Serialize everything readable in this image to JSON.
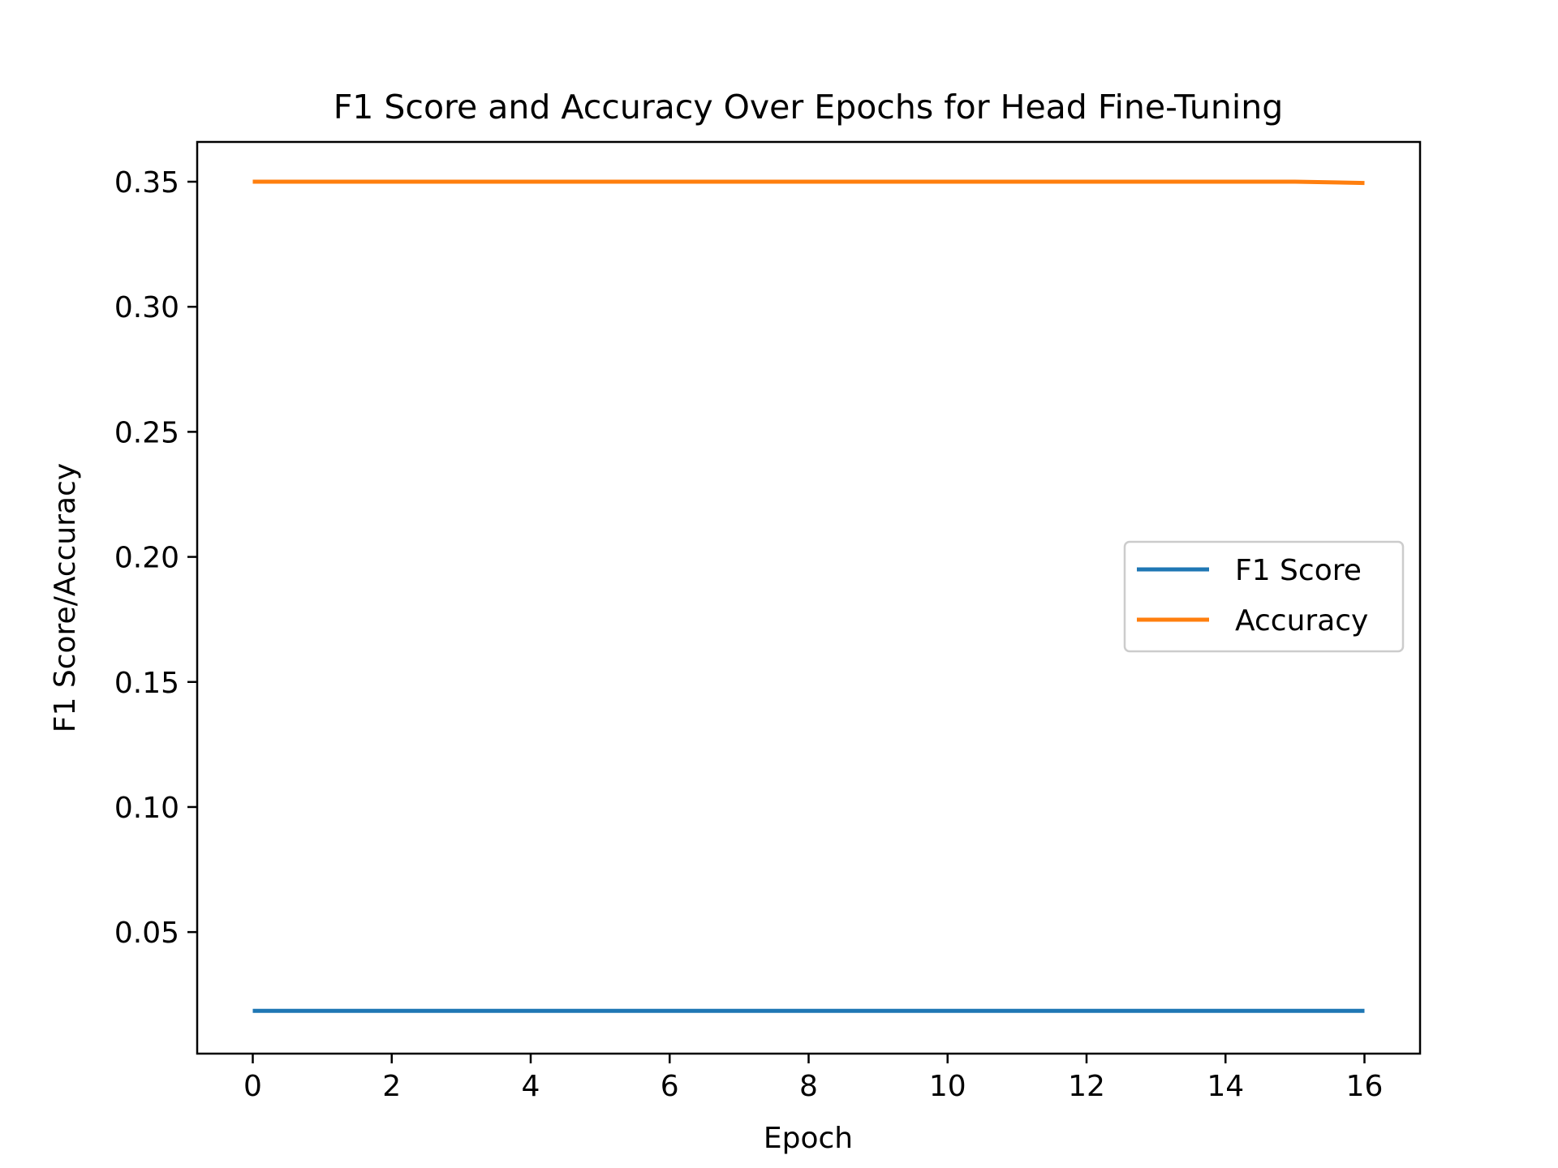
{
  "chart_data": {
    "type": "line",
    "title": "F1 Score and Accuracy Over Epochs for Head Fine-Tuning",
    "xlabel": "Epoch",
    "ylabel": "F1 Score/Accuracy",
    "x": [
      0,
      1,
      2,
      3,
      4,
      5,
      6,
      7,
      8,
      9,
      10,
      11,
      12,
      13,
      14,
      15,
      16
    ],
    "xlim": [
      -0.8,
      16.8
    ],
    "ylim": [
      0.0014,
      0.3659
    ],
    "x_ticks": [
      0,
      2,
      4,
      6,
      8,
      10,
      12,
      14,
      16
    ],
    "y_ticks": [
      0.05,
      0.1,
      0.15,
      0.2,
      0.25,
      0.3,
      0.35
    ],
    "y_tick_labels": [
      "0.05",
      "0.10",
      "0.15",
      "0.20",
      "0.25",
      "0.30",
      "0.35"
    ],
    "x_tick_labels": [
      "0",
      "2",
      "4",
      "6",
      "8",
      "10",
      "12",
      "14",
      "16"
    ],
    "grid": false,
    "legend_position": "center-right",
    "series": [
      {
        "name": "F1 Score",
        "color": "#1f77b4",
        "values": [
          0.0185,
          0.0185,
          0.0185,
          0.0185,
          0.0185,
          0.0185,
          0.0185,
          0.0185,
          0.0185,
          0.0185,
          0.0185,
          0.0185,
          0.0185,
          0.0185,
          0.0185,
          0.0185,
          0.0185
        ]
      },
      {
        "name": "Accuracy",
        "color": "#ff7f0e",
        "values": [
          0.35,
          0.35,
          0.35,
          0.35,
          0.35,
          0.35,
          0.35,
          0.35,
          0.35,
          0.35,
          0.35,
          0.35,
          0.35,
          0.35,
          0.35,
          0.35,
          0.3495
        ]
      }
    ]
  }
}
